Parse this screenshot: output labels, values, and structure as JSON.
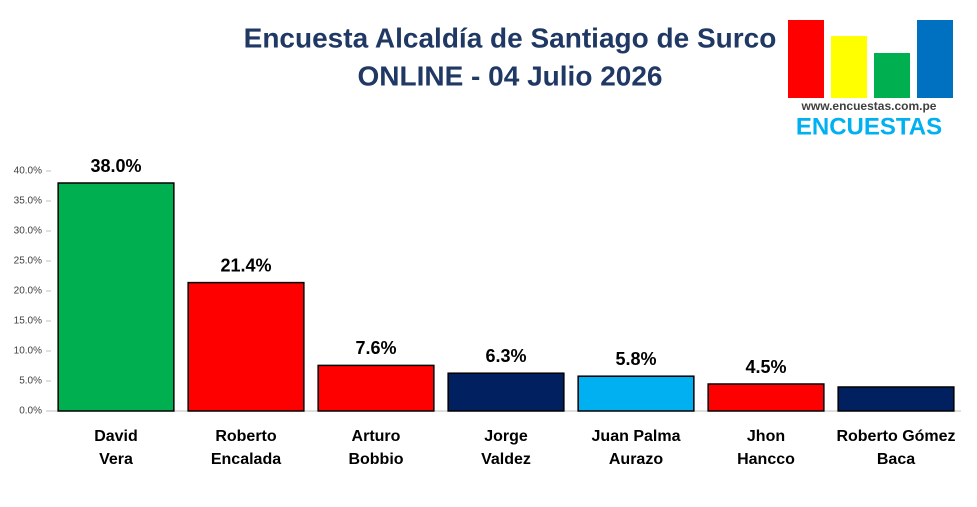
{
  "chart_data": {
    "type": "bar",
    "title": "Encuesta Alcaldía de Santiago de Surco",
    "subtitle": "ONLINE - 04 Julio 2026",
    "logo_url": "www.encuestas.com.pe",
    "logo_name": "ENCUESTAS",
    "categories": [
      "David\nVera",
      "Roberto\nEncalada",
      "Arturo\nBobbio",
      "Jorge\nValdez",
      "Juan Palma\nAurazo",
      "Jhon\nHancco",
      "Roberto Gómez\nBaca"
    ],
    "values": [
      38.0,
      21.4,
      7.6,
      6.3,
      5.8,
      4.5,
      4.0
    ],
    "value_labels": [
      "38.0%",
      "21.4%",
      "7.6%",
      "6.3%",
      "5.8%",
      "4.5%",
      null
    ],
    "colors": [
      "#00b050",
      "#ff0000",
      "#ff0000",
      "#002060",
      "#00b0f0",
      "#ff0000",
      "#002060"
    ],
    "ylim": [
      0,
      40
    ],
    "yticks": [
      {
        "value": 0,
        "label": "0.0%"
      },
      {
        "value": 5,
        "label": "5.0%"
      },
      {
        "value": 10,
        "label": "10.0%"
      },
      {
        "value": 15,
        "label": "15.0%"
      },
      {
        "value": 20,
        "label": "20.0%"
      },
      {
        "value": 25,
        "label": "25.0%"
      },
      {
        "value": 30,
        "label": "30.0%"
      },
      {
        "value": 35,
        "label": "35.0%"
      },
      {
        "value": 40,
        "label": "40.0%"
      }
    ],
    "grid": false
  }
}
